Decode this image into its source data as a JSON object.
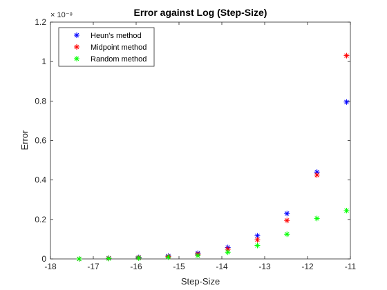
{
  "chart_data": {
    "type": "scatter",
    "title": "Error against Log (Step-Size)",
    "xlabel": "Step-Size",
    "ylabel": "Error",
    "y_exponent": "× 10⁻⁸",
    "xlim": [
      -18,
      -11
    ],
    "ylim": [
      0,
      1.2
    ],
    "xticks": [
      -18,
      -17,
      -16,
      -15,
      -14,
      -13,
      -12,
      -11
    ],
    "yticks": [
      0,
      0.2,
      0.4,
      0.6,
      0.8,
      1,
      1.2
    ],
    "grid": false,
    "legend_position": "top-left",
    "marker": "*",
    "series": [
      {
        "name": "Heun's method",
        "color": "#0000ff",
        "x": [
          -17.33,
          -16.64,
          -15.94,
          -15.25,
          -14.56,
          -13.86,
          -13.17,
          -12.48,
          -11.78,
          -11.09
        ],
        "y": [
          0.0,
          0.004,
          0.008,
          0.015,
          0.029,
          0.058,
          0.117,
          0.23,
          0.44,
          0.795
        ]
      },
      {
        "name": "Midpoint method",
        "color": "#ff0000",
        "x": [
          -17.33,
          -16.64,
          -15.94,
          -15.25,
          -14.56,
          -13.86,
          -13.17,
          -12.48,
          -11.78,
          -11.09
        ],
        "y": [
          0.0,
          0.003,
          0.006,
          0.012,
          0.024,
          0.049,
          0.097,
          0.195,
          0.425,
          1.03
        ]
      },
      {
        "name": "Random method",
        "color": "#00ff00",
        "x": [
          -17.33,
          -16.64,
          -15.94,
          -15.25,
          -14.56,
          -13.86,
          -13.17,
          -12.48,
          -11.78,
          -11.09
        ],
        "y": [
          0.0,
          0.002,
          0.004,
          0.009,
          0.017,
          0.034,
          0.068,
          0.125,
          0.205,
          0.245
        ]
      }
    ]
  }
}
